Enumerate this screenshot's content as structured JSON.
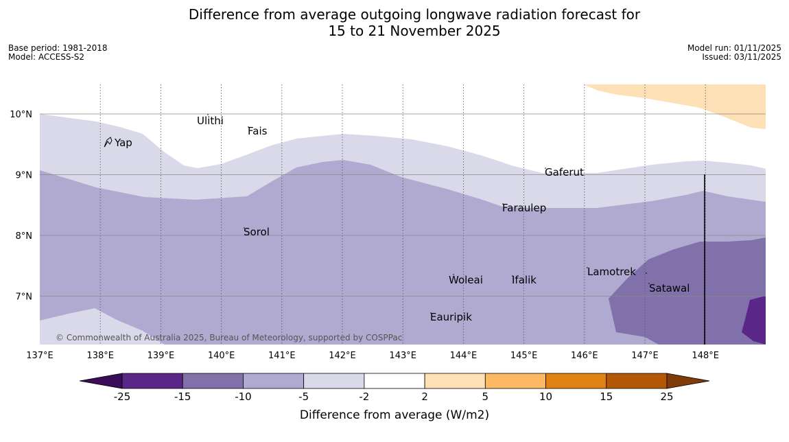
{
  "title": {
    "line1": "Difference from average outgoing longwave radiation forecast for",
    "line2": "15 to 21 November 2025"
  },
  "meta": {
    "base_period": "Base period: 1981-2018",
    "model": "Model: ACCESS-S2",
    "model_run": "Model run: 01/11/2025",
    "issued": "Issued: 03/11/2025"
  },
  "map": {
    "lon_ticks": [
      "137°E",
      "138°E",
      "139°E",
      "140°E",
      "141°E",
      "142°E",
      "143°E",
      "144°E",
      "145°E",
      "146°E",
      "147°E",
      "148°E"
    ],
    "lat_ticks": [
      "10°N",
      "9°N",
      "8°N",
      "7°N"
    ],
    "places": [
      {
        "name": "Ulithi"
      },
      {
        "name": "Fais"
      },
      {
        "name": "Yap"
      },
      {
        "name": "Gaferut"
      },
      {
        "name": "Faraulep"
      },
      {
        "name": "Sorol"
      },
      {
        "name": "Woleai"
      },
      {
        "name": "Ifalik"
      },
      {
        "name": "Lamotrek"
      },
      {
        "name": "Satawal"
      },
      {
        "name": "Eauripik"
      }
    ],
    "copyright": "© Commonwealth of Australia 2025, Bureau of Meteorology, supported by COSPPac"
  },
  "colorbar": {
    "labels": [
      "-25",
      "-15",
      "-10",
      "-5",
      "-2",
      "2",
      "5",
      "10",
      "15",
      "25"
    ],
    "colors": [
      "#3b0c57",
      "#5a2789",
      "#8071aa",
      "#b0aad1",
      "#d9d9ea",
      "#ffffff",
      "#fee0b6",
      "#fdb863",
      "#e08214",
      "#b35806",
      "#7f3b08"
    ],
    "title": "Difference from average (W/m2)"
  }
}
